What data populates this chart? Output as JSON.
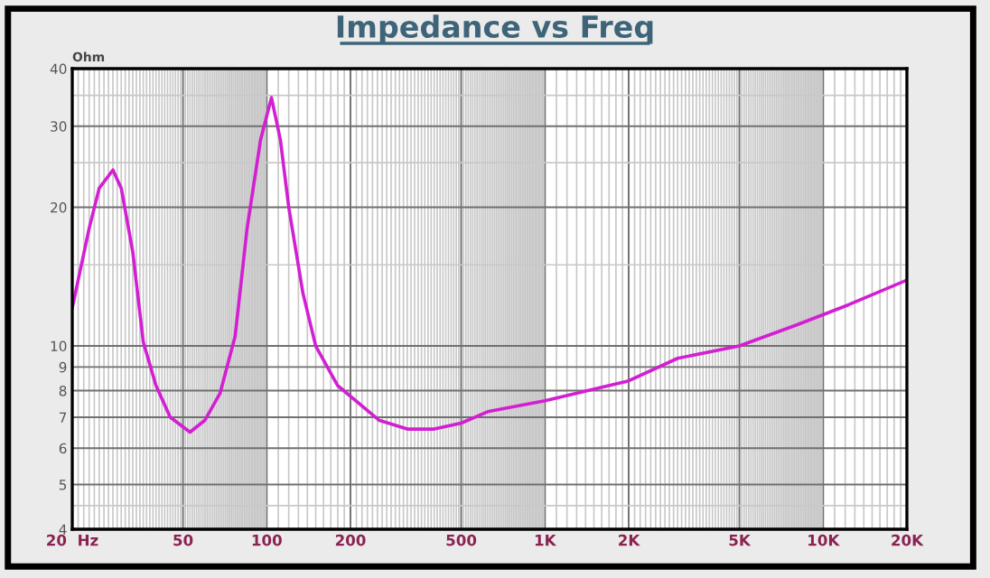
{
  "chart_data": {
    "type": "line",
    "title": "Impedance vs Freq",
    "ylabel": "Ohm",
    "x": [
      20,
      23,
      25,
      28,
      30,
      33,
      36,
      40,
      45,
      53,
      60,
      68,
      77,
      85,
      95,
      104,
      112,
      120,
      135,
      150,
      180,
      253,
      320,
      400,
      500,
      623,
      1000,
      2000,
      3000,
      5000,
      8000,
      12400,
      20000
    ],
    "series": [
      {
        "color": "#d21fd2",
        "values": [
          12.1,
          18,
          22,
          24.1,
          22,
          16,
          10.2,
          8.2,
          7.0,
          6.5,
          6.9,
          7.9,
          10.5,
          18,
          28,
          34.6,
          28,
          20,
          13,
          10,
          8.2,
          6.9,
          6.6,
          6.6,
          6.8,
          7.2,
          7.6,
          8.4,
          9.4,
          10,
          11.1,
          12.3,
          13.9
        ]
      }
    ],
    "log": "xy",
    "xlim": [
      20,
      20000
    ],
    "ylim": [
      4,
      40
    ],
    "xticks": [
      {
        "value": 20,
        "label": "20  Hz"
      },
      50,
      100,
      200,
      500,
      {
        "value": 1000,
        "label": "1K"
      },
      {
        "value": 2000,
        "label": "2K"
      },
      {
        "value": 5000,
        "label": "5K"
      },
      {
        "value": 10000,
        "label": "10K"
      },
      {
        "value": 20000,
        "label": "20K"
      }
    ],
    "yticks": [
      4,
      5,
      6,
      7,
      8,
      9,
      10,
      20,
      30,
      40
    ],
    "grid": true,
    "legend": false
  }
}
